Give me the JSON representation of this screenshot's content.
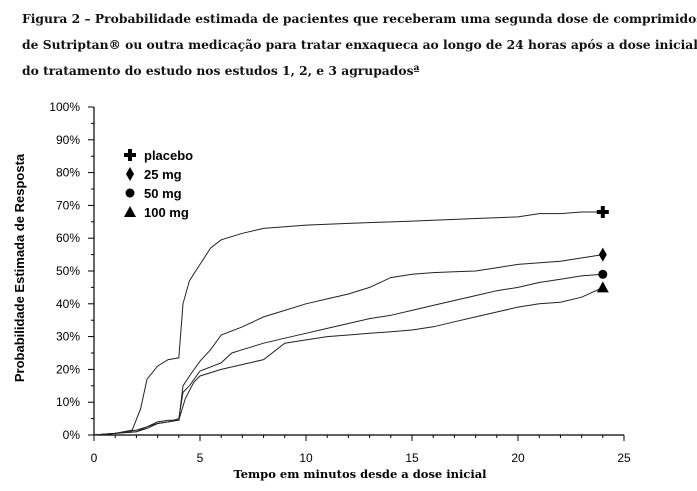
{
  "caption": {
    "line1": "Figura 2 – Probabilidade estimada de pacientes que receberam uma segunda dose de comprimidos",
    "line2": "de Sutriptan® ou outra medicação para tratar enxaqueca ao longo de 24 horas após a dose inicial",
    "line3": "do tratamento do estudo nos estudos 1, 2, e 3 agrupadosª"
  },
  "chart_data": {
    "type": "line",
    "xlabel": "Tempo em minutos desde a dose inicial",
    "ylabel": "Probabilidade Estimada de Resposta",
    "xlim": [
      0,
      25
    ],
    "ylim": [
      0,
      100
    ],
    "xticks": [
      0,
      5,
      10,
      15,
      20,
      25
    ],
    "yticks": [
      "0%",
      "10%",
      "20%",
      "30%",
      "40%",
      "50%",
      "60%",
      "70%",
      "80%",
      "90%",
      "100%"
    ],
    "grid": false,
    "legend_position": "top-left",
    "series": [
      {
        "name": "placebo",
        "marker": "plus",
        "end_x": 24,
        "points": [
          [
            0,
            0
          ],
          [
            1,
            0.5
          ],
          [
            1.8,
            1.5
          ],
          [
            2.2,
            8
          ],
          [
            2.5,
            17
          ],
          [
            3,
            21
          ],
          [
            3.5,
            23
          ],
          [
            4,
            23.5
          ],
          [
            4.2,
            40
          ],
          [
            4.5,
            47
          ],
          [
            5,
            52
          ],
          [
            5.5,
            57
          ],
          [
            6,
            59.5
          ],
          [
            7,
            61.5
          ],
          [
            8,
            63
          ],
          [
            9,
            63.5
          ],
          [
            10,
            64
          ],
          [
            12,
            64.5
          ],
          [
            15,
            65.2
          ],
          [
            18,
            66
          ],
          [
            20,
            66.5
          ],
          [
            21,
            67.5
          ],
          [
            22,
            67.5
          ],
          [
            23,
            68
          ],
          [
            24,
            68
          ]
        ]
      },
      {
        "name": "25 mg",
        "marker": "diamond",
        "end_x": 24,
        "points": [
          [
            0,
            0
          ],
          [
            1,
            0.5
          ],
          [
            2,
            1
          ],
          [
            2.5,
            2
          ],
          [
            3,
            3.5
          ],
          [
            3.5,
            4
          ],
          [
            4,
            4.5
          ],
          [
            4.2,
            15
          ],
          [
            4.5,
            18
          ],
          [
            5,
            22.5
          ],
          [
            5.5,
            26
          ],
          [
            6,
            30.5
          ],
          [
            7,
            33
          ],
          [
            8,
            36
          ],
          [
            9,
            38
          ],
          [
            10,
            40
          ],
          [
            11,
            41.5
          ],
          [
            12,
            43
          ],
          [
            13,
            45
          ],
          [
            14,
            48
          ],
          [
            15,
            49
          ],
          [
            16,
            49.5
          ],
          [
            17,
            49.8
          ],
          [
            18,
            50
          ],
          [
            19,
            51
          ],
          [
            20,
            52
          ],
          [
            22,
            53
          ],
          [
            24,
            55
          ]
        ]
      },
      {
        "name": "50 mg",
        "marker": "circle",
        "end_x": 24,
        "points": [
          [
            0,
            0
          ],
          [
            1,
            0.5
          ],
          [
            2,
            1
          ],
          [
            2.5,
            2.5
          ],
          [
            3,
            3.5
          ],
          [
            3.5,
            4
          ],
          [
            4,
            5
          ],
          [
            4.2,
            13
          ],
          [
            4.5,
            15
          ],
          [
            5,
            19.5
          ],
          [
            6,
            22
          ],
          [
            6.5,
            25
          ],
          [
            7,
            26
          ],
          [
            8,
            28
          ],
          [
            9,
            29.5
          ],
          [
            10,
            31
          ],
          [
            11,
            32.5
          ],
          [
            12,
            34
          ],
          [
            13,
            35.5
          ],
          [
            14,
            36.5
          ],
          [
            15,
            38
          ],
          [
            16,
            39.5
          ],
          [
            17,
            41
          ],
          [
            18,
            42.5
          ],
          [
            19,
            44
          ],
          [
            20,
            45
          ],
          [
            21,
            46.5
          ],
          [
            22,
            47.5
          ],
          [
            23,
            48.5
          ],
          [
            24,
            49
          ]
        ]
      },
      {
        "name": "100 mg",
        "marker": "triangle",
        "end_x": 24,
        "points": [
          [
            0,
            0
          ],
          [
            1,
            0.5
          ],
          [
            2,
            1.5
          ],
          [
            2.5,
            2.5
          ],
          [
            3,
            4
          ],
          [
            3.5,
            4.5
          ],
          [
            4,
            4.5
          ],
          [
            4.3,
            11
          ],
          [
            4.7,
            16
          ],
          [
            5,
            18
          ],
          [
            6,
            20
          ],
          [
            7,
            21.5
          ],
          [
            8,
            23
          ],
          [
            9,
            28
          ],
          [
            10,
            29
          ],
          [
            11,
            30
          ],
          [
            12,
            30.5
          ],
          [
            13,
            31
          ],
          [
            14,
            31.5
          ],
          [
            15,
            32
          ],
          [
            16,
            33
          ],
          [
            17,
            34.5
          ],
          [
            18,
            36
          ],
          [
            19,
            37.5
          ],
          [
            20,
            39
          ],
          [
            21,
            40
          ],
          [
            22,
            40.5
          ],
          [
            23,
            42
          ],
          [
            24,
            45
          ]
        ]
      }
    ]
  }
}
